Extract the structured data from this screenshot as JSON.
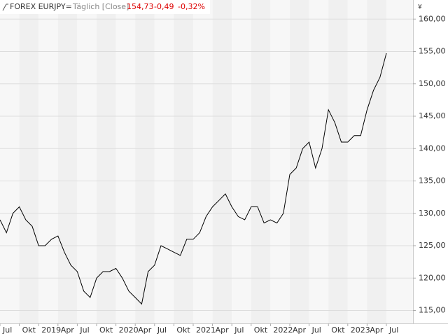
{
  "header": {
    "instrument": "FOREX EURJPY=",
    "interval": "Täglich [Close]",
    "last": "154,73",
    "change": "-0,49",
    "change_pct": "-0,32%"
  },
  "chart_data": {
    "type": "line",
    "color": "#000000",
    "y_label": "¥",
    "x": [
      "2018-07",
      "2018-08",
      "2018-09",
      "2018-10",
      "2018-11",
      "2018-12",
      "2019-01",
      "2019-02",
      "2019-03",
      "2019-04",
      "2019-05",
      "2019-06",
      "2019-07",
      "2019-08",
      "2019-09",
      "2019-10",
      "2019-11",
      "2019-12",
      "2020-01",
      "2020-02",
      "2020-03",
      "2020-04",
      "2020-05",
      "2020-06",
      "2020-07",
      "2020-08",
      "2020-09",
      "2020-10",
      "2020-11",
      "2020-12",
      "2021-01",
      "2021-02",
      "2021-03",
      "2021-04",
      "2021-05",
      "2021-06",
      "2021-07",
      "2021-08",
      "2021-09",
      "2021-10",
      "2021-11",
      "2021-12",
      "2022-01",
      "2022-02",
      "2022-03",
      "2022-04",
      "2022-05",
      "2022-06",
      "2022-07",
      "2022-08",
      "2022-09",
      "2022-10",
      "2022-11",
      "2022-12",
      "2023-01",
      "2023-02",
      "2023-03",
      "2023-04",
      "2023-05",
      "2023-06",
      "2023-07"
    ],
    "values": [
      129,
      127,
      130,
      131,
      129,
      128,
      125,
      125,
      126,
      126.5,
      124,
      122,
      121,
      118,
      117,
      120,
      121,
      121,
      121.5,
      120,
      118,
      117,
      116,
      121,
      122,
      125,
      124.5,
      124,
      123.5,
      126,
      126,
      127,
      129.5,
      131,
      132,
      133,
      131,
      129.5,
      129,
      131,
      131,
      128.5,
      129,
      128.5,
      130,
      136,
      137,
      140,
      141,
      137,
      140,
      146,
      144,
      141,
      141,
      142,
      142,
      146,
      149,
      151,
      154.73
    ],
    "ylim": [
      113,
      161
    ],
    "yticks": [
      {
        "value": 115,
        "label": "115,00"
      },
      {
        "value": 120,
        "label": "120,00"
      },
      {
        "value": 125,
        "label": "125,00"
      },
      {
        "value": 130,
        "label": "130,00"
      },
      {
        "value": 135,
        "label": "135,00"
      },
      {
        "value": 140,
        "label": "140,00"
      },
      {
        "value": 145,
        "label": "145,00"
      },
      {
        "value": 150,
        "label": "150,00"
      },
      {
        "value": 155,
        "label": "155,00"
      },
      {
        "value": 160,
        "label": "160,00"
      }
    ],
    "xticks": [
      {
        "value": "2018-07",
        "label": "Jul"
      },
      {
        "value": "2018-10",
        "label": "Okt"
      },
      {
        "value": "2019-01",
        "label": "2019"
      },
      {
        "value": "2019-04",
        "label": "Apr"
      },
      {
        "value": "2019-07",
        "label": "Jul"
      },
      {
        "value": "2019-10",
        "label": "Okt"
      },
      {
        "value": "2020-01",
        "label": "2020"
      },
      {
        "value": "2020-04",
        "label": "Apr"
      },
      {
        "value": "2020-07",
        "label": "Jul"
      },
      {
        "value": "2020-10",
        "label": "Okt"
      },
      {
        "value": "2021-01",
        "label": "2021"
      },
      {
        "value": "2021-04",
        "label": "Apr"
      },
      {
        "value": "2021-07",
        "label": "Jul"
      },
      {
        "value": "2021-10",
        "label": "Okt"
      },
      {
        "value": "2022-01",
        "label": "2022"
      },
      {
        "value": "2022-04",
        "label": "Apr"
      },
      {
        "value": "2022-07",
        "label": "Jul"
      },
      {
        "value": "2022-10",
        "label": "Okt"
      },
      {
        "value": "2023-01",
        "label": "2023"
      },
      {
        "value": "2023-04",
        "label": "Apr"
      },
      {
        "value": "2023-07",
        "label": "Jul"
      }
    ],
    "grid": true
  }
}
